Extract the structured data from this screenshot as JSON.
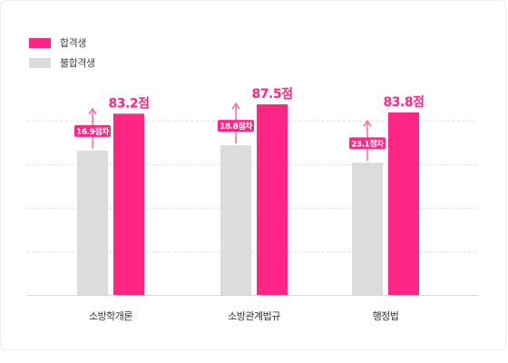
{
  "colors": {
    "pass": "#ff2585",
    "fail": "#dcdcdc",
    "grid": "#e0e0e0",
    "axis": "#d8d8d8",
    "arrow": "#ff4f9a"
  },
  "legend": [
    {
      "label": "합격생",
      "color": "#ff2585"
    },
    {
      "label": "불합격생",
      "color": "#dcdcdc"
    }
  ],
  "chart_data": {
    "type": "bar",
    "categories": [
      "소방학개론",
      "소방관계법규",
      "행정법"
    ],
    "series": [
      {
        "name": "합격생",
        "values": [
          83.2,
          87.5,
          83.8
        ],
        "labels": [
          "83.2점",
          "87.5점",
          "83.8점"
        ]
      },
      {
        "name": "불합격생",
        "values": [
          66.3,
          68.7,
          60.7
        ]
      }
    ],
    "differences": [
      "16.9점차",
      "18.8점차",
      "23.1점차"
    ],
    "ylim": [
      0,
      100
    ],
    "grid": true,
    "legend_position": "top-left"
  }
}
